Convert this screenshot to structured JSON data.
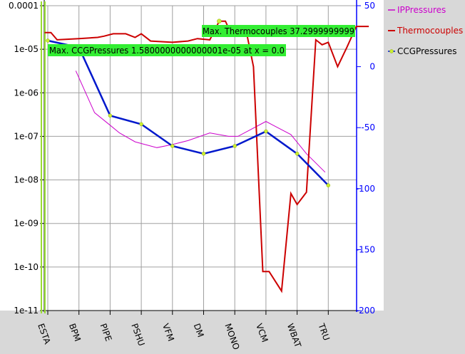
{
  "chart_data": {
    "type": "line",
    "categories": [
      "ESTA",
      "BPM",
      "PIPE",
      "PSHU",
      "VFM",
      "DM",
      "MONO",
      "VCM",
      "WBAT",
      "TRU"
    ],
    "left_axis": {
      "scale": "log",
      "ylim": [
        1e-11,
        0.0001
      ],
      "tick_labels": [
        "1e-11",
        "1e-10",
        "1e-09",
        "1e-08",
        "1e-07",
        "1e-06",
        "1e-05",
        "0.0001"
      ]
    },
    "right_axis": {
      "scale": "linear",
      "ylim": [
        -200,
        50
      ],
      "tick_labels": [
        "50",
        "0",
        "-50",
        "-100",
        "-150",
        "-200"
      ]
    },
    "grid": true,
    "legend_position": "right",
    "series": [
      {
        "name": "IPPressures",
        "axis": "left",
        "color": "#cc00cc",
        "points": [
          {
            "x": 0.9,
            "y": 3.2e-06
          },
          {
            "x": 1.5,
            "y": 3.5e-07
          },
          {
            "x": 2.0,
            "y": 1.8e-07
          },
          {
            "x": 2.3,
            "y": 1.2e-07
          },
          {
            "x": 2.8,
            "y": 7.5e-08
          },
          {
            "x": 3.5,
            "y": 5.5e-08
          },
          {
            "x": 4.0,
            "y": 6.5e-08
          },
          {
            "x": 4.5,
            "y": 8e-08
          },
          {
            "x": 5.2,
            "y": 1.2e-07
          },
          {
            "x": 5.8,
            "y": 1e-07
          },
          {
            "x": 6.1,
            "y": 1e-07
          },
          {
            "x": 7.0,
            "y": 2.2e-07
          },
          {
            "x": 7.8,
            "y": 1.1e-07
          },
          {
            "x": 8.3,
            "y": 4e-08
          },
          {
            "x": 8.9,
            "y": 1.5e-08
          }
        ]
      },
      {
        "name": "Thermocouples",
        "axis": "right",
        "color": "#cc0000",
        "points": [
          {
            "x": -0.1,
            "y": 28
          },
          {
            "x": 0.1,
            "y": 28
          },
          {
            "x": 0.3,
            "y": 22
          },
          {
            "x": 1.0,
            "y": 23
          },
          {
            "x": 1.6,
            "y": 24
          },
          {
            "x": 1.8,
            "y": 25
          },
          {
            "x": 2.1,
            "y": 27
          },
          {
            "x": 2.5,
            "y": 27
          },
          {
            "x": 2.8,
            "y": 24
          },
          {
            "x": 3.0,
            "y": 27
          },
          {
            "x": 3.3,
            "y": 21
          },
          {
            "x": 4.0,
            "y": 20
          },
          {
            "x": 4.5,
            "y": 21
          },
          {
            "x": 4.8,
            "y": 23
          },
          {
            "x": 5.2,
            "y": 22
          },
          {
            "x": 5.5,
            "y": 37.3
          },
          {
            "x": 5.7,
            "y": 37.3
          },
          {
            "x": 5.9,
            "y": 26
          },
          {
            "x": 6.4,
            "y": 25
          },
          {
            "x": 6.6,
            "y": 0
          },
          {
            "x": 6.9,
            "y": -168
          },
          {
            "x": 7.1,
            "y": -168
          },
          {
            "x": 7.5,
            "y": -184
          },
          {
            "x": 7.8,
            "y": -104
          },
          {
            "x": 8.0,
            "y": -113
          },
          {
            "x": 8.3,
            "y": -103
          },
          {
            "x": 8.6,
            "y": 22
          },
          {
            "x": 8.8,
            "y": 18
          },
          {
            "x": 9.0,
            "y": 20
          },
          {
            "x": 9.3,
            "y": 0
          },
          {
            "x": 9.6,
            "y": 16
          },
          {
            "x": 9.9,
            "y": 33
          },
          {
            "x": 10.3,
            "y": 33
          }
        ]
      },
      {
        "name": "CCGPressures",
        "axis": "left",
        "color": "#0018cc",
        "marker_color": "#ccee33",
        "points": [
          {
            "x": 0,
            "y": 1.58e-05
          },
          {
            "x": 1,
            "y": 1.1e-05
          },
          {
            "x": 2,
            "y": 3e-07
          },
          {
            "x": 3,
            "y": 1.9e-07
          },
          {
            "x": 4,
            "y": 6e-08
          },
          {
            "x": 5,
            "y": 4e-08
          },
          {
            "x": 6,
            "y": 6e-08
          },
          {
            "x": 7,
            "y": 1.3e-07
          },
          {
            "x": 8,
            "y": 4e-08
          },
          {
            "x": 9,
            "y": 7.5e-09
          }
        ]
      }
    ],
    "annotations": [
      {
        "text": "Max. Thermocouples 37.2999999999",
        "series": "Thermocouples"
      },
      {
        "text": "Max. CCGPressures 1.5800000000000001e-05 at x = 0.0",
        "series": "CCGPressures"
      }
    ]
  }
}
